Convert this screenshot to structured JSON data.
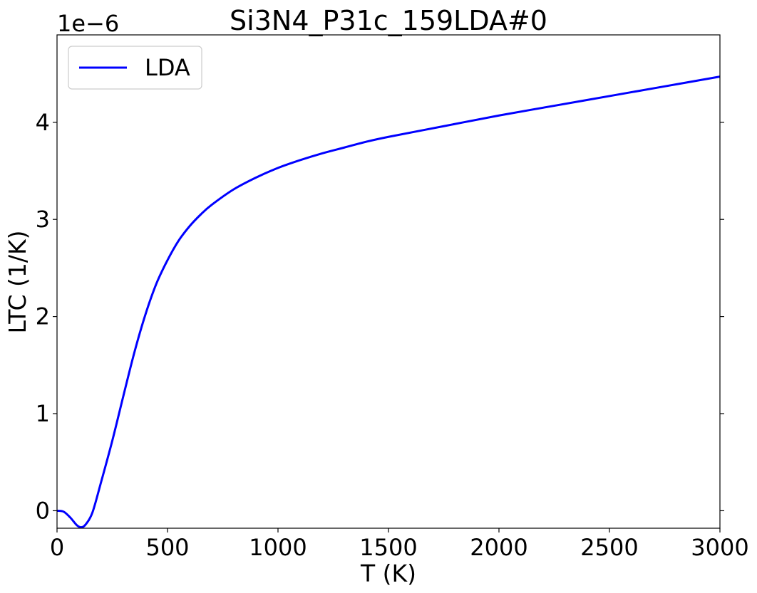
{
  "chart_data": {
    "type": "line",
    "title": "Si3N4_P31c_159LDA#0",
    "xlabel": "T (K)",
    "ylabel": "LTC (1/K)",
    "offset_text": "1e−6",
    "y_scale": 1e-06,
    "xlim": [
      0,
      3000
    ],
    "ylim": [
      -0.18,
      4.9
    ],
    "x_ticks": [
      0,
      500,
      1000,
      1500,
      2000,
      2500,
      3000
    ],
    "x_tick_labels": [
      "0",
      "500",
      "1000",
      "1500",
      "2000",
      "2500",
      "3000"
    ],
    "y_ticks": [
      0,
      1,
      2,
      3,
      4
    ],
    "y_tick_labels": [
      "0",
      "1",
      "2",
      "3",
      "4"
    ],
    "grid": false,
    "legend_position": "top-left",
    "series": [
      {
        "name": "LDA",
        "color": "#0000ff",
        "x": [
          0,
          30,
          60,
          90,
          110,
          130,
          160,
          200,
          250,
          300,
          350,
          400,
          450,
          500,
          550,
          600,
          650,
          700,
          800,
          900,
          1000,
          1100,
          1200,
          1300,
          1400,
          1500,
          1750,
          2000,
          2250,
          2500,
          2750,
          3000
        ],
        "y": [
          0.0,
          -0.01,
          -0.07,
          -0.15,
          -0.17,
          -0.14,
          -0.02,
          0.3,
          0.72,
          1.18,
          1.63,
          2.02,
          2.34,
          2.58,
          2.78,
          2.93,
          3.05,
          3.15,
          3.31,
          3.43,
          3.53,
          3.61,
          3.68,
          3.74,
          3.8,
          3.85,
          3.96,
          4.07,
          4.17,
          4.27,
          4.37,
          4.47
        ]
      }
    ]
  }
}
